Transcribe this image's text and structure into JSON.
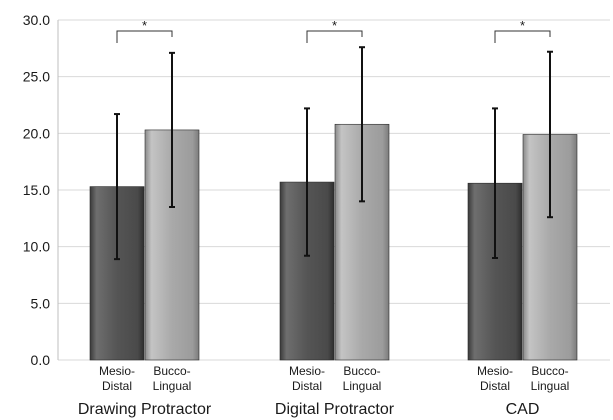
{
  "chart_data": {
    "type": "bar",
    "title": "",
    "xlabel": "",
    "ylabel": "",
    "ylim": [
      0,
      30
    ],
    "yticks": [
      "0.0",
      "5.0",
      "10.0",
      "15.0",
      "20.0",
      "25.0",
      "30.0"
    ],
    "grid": true,
    "legend": "none",
    "categories": [
      "Drawing Protractor",
      "Digital Protractor",
      "CAD"
    ],
    "series": [
      {
        "label_lines": [
          "Mesio-",
          "Distal"
        ],
        "color": "#555555",
        "values": [
          15.3,
          15.7,
          15.6
        ],
        "error_low": [
          8.9,
          9.2,
          9.0
        ],
        "error_high": [
          21.7,
          22.2,
          22.2
        ]
      },
      {
        "label_lines": [
          "Bucco-",
          "Lingual"
        ],
        "color": "#a6a6a6",
        "values": [
          20.3,
          20.8,
          19.9
        ],
        "error_low": [
          13.5,
          14.0,
          12.6
        ],
        "error_high": [
          27.1,
          27.6,
          27.2
        ]
      }
    ],
    "significance": [
      "*",
      "*",
      "*"
    ]
  }
}
